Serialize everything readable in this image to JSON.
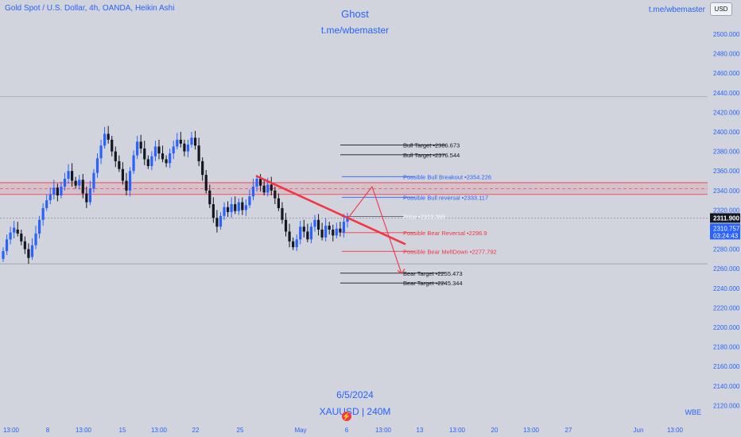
{
  "header": {
    "symbol_title": "Gold Spot / U.S. Dollar, 4h, OANDA, Heikin Ashi",
    "watermark": "t.me/wbemaster",
    "currency_button": "USD"
  },
  "overlay": {
    "title": "Ghost",
    "subtitle": "t.me/wbemaster",
    "date": "6/5/2024",
    "symbol_interval": "XAUUSD | 240M",
    "corner_tag": "WBE"
  },
  "colors": {
    "background": "#d1d4dc",
    "axis_text": "#2962ff",
    "bull_candle": "#2962ff",
    "bear_candle": "#131722",
    "trend_line": "#f23645",
    "price_label_bg": "#131722",
    "ha_label_bg": "#2962ff"
  },
  "icons": [
    "lightning-bolt-icon"
  ],
  "chart_data": {
    "type": "candlestick",
    "y_ticks": [
      "2500.000",
      "2480.000",
      "2460.000",
      "2440.000",
      "2420.000",
      "2400.000",
      "2380.000",
      "2360.000",
      "2340.000",
      "2320.000",
      "2300.000",
      "2280.000",
      "2260.000",
      "2240.000",
      "2220.000",
      "2200.000",
      "2180.000",
      "2160.000",
      "2140.000",
      "2120.000"
    ],
    "x_ticks": [
      "13:00",
      "8",
      "13:00",
      "15",
      "13:00",
      "22",
      "25",
      "May",
      "6",
      "13:00",
      "13",
      "13:00",
      "20",
      "13:00",
      "27",
      "Jun",
      "13:00"
    ],
    "ylim": [
      2115,
      2520
    ],
    "current_price": "2311.900",
    "ha_price": "2310.757",
    "countdown": "03:24:43",
    "levels": [
      {
        "label": "Bull Target",
        "value": "2386.673",
        "color": "#131722"
      },
      {
        "label": "Bull Target",
        "value": "2376.544",
        "color": "#131722"
      },
      {
        "label": "Possible Bull Breakout",
        "value": "2354.226",
        "color": "#2962ff"
      },
      {
        "label": "Possible Bull reversal",
        "value": "2333.117",
        "color": "#2962ff"
      },
      {
        "label": "Price",
        "value": "2313.395",
        "color": "#ffffff"
      },
      {
        "label": "Possible Bear Reversal",
        "value": "2296.9",
        "color": "#f23645"
      },
      {
        "label": "Possible Bear MeltDown",
        "value": "2277.792",
        "color": "#f23645"
      },
      {
        "label": "Bear Target",
        "value": "2255.473",
        "color": "#131722"
      },
      {
        "label": "Bear Target",
        "value": "2245.344",
        "color": "#131722"
      }
    ],
    "resistance_band": [
      2336,
      2348
    ],
    "support_line": 2265,
    "top_line": 2436,
    "trend_line": [
      [
        322,
        2355
      ],
      [
        510,
        2285
      ]
    ],
    "projection": [
      [
        438,
        2312
      ],
      [
        468,
        2344
      ],
      [
        505,
        2255
      ]
    ],
    "candles": [
      [
        2270,
        2278
      ],
      [
        2278,
        2290
      ],
      [
        2290,
        2297
      ],
      [
        2297,
        2302
      ],
      [
        2300,
        2296
      ],
      [
        2296,
        2288
      ],
      [
        2288,
        2280
      ],
      [
        2280,
        2271
      ],
      [
        2272,
        2284
      ],
      [
        2284,
        2296
      ],
      [
        2296,
        2310
      ],
      [
        2310,
        2322
      ],
      [
        2322,
        2330
      ],
      [
        2330,
        2336
      ],
      [
        2336,
        2343
      ],
      [
        2343,
        2335
      ],
      [
        2335,
        2344
      ],
      [
        2344,
        2352
      ],
      [
        2352,
        2360
      ],
      [
        2360,
        2350
      ],
      [
        2350,
        2345
      ],
      [
        2345,
        2351
      ],
      [
        2351,
        2337
      ],
      [
        2337,
        2328
      ],
      [
        2328,
        2342
      ],
      [
        2342,
        2358
      ],
      [
        2358,
        2373
      ],
      [
        2373,
        2386
      ],
      [
        2386,
        2398
      ],
      [
        2398,
        2392
      ],
      [
        2392,
        2380
      ],
      [
        2380,
        2370
      ],
      [
        2370,
        2362
      ],
      [
        2362,
        2350
      ],
      [
        2350,
        2340
      ],
      [
        2340,
        2360
      ],
      [
        2360,
        2376
      ],
      [
        2376,
        2390
      ],
      [
        2390,
        2383
      ],
      [
        2383,
        2372
      ],
      [
        2372,
        2365
      ],
      [
        2365,
        2375
      ],
      [
        2375,
        2385
      ],
      [
        2385,
        2378
      ],
      [
        2378,
        2372
      ],
      [
        2372,
        2368
      ],
      [
        2368,
        2378
      ],
      [
        2378,
        2385
      ],
      [
        2385,
        2392
      ],
      [
        2392,
        2388
      ],
      [
        2388,
        2380
      ],
      [
        2380,
        2387
      ],
      [
        2387,
        2394
      ],
      [
        2394,
        2386
      ],
      [
        2386,
        2370
      ],
      [
        2370,
        2356
      ],
      [
        2356,
        2340
      ],
      [
        2340,
        2326
      ],
      [
        2326,
        2312
      ],
      [
        2312,
        2303
      ],
      [
        2303,
        2314
      ],
      [
        2314,
        2323
      ],
      [
        2323,
        2318
      ],
      [
        2318,
        2326
      ],
      [
        2326,
        2319
      ],
      [
        2319,
        2328
      ],
      [
        2328,
        2320
      ],
      [
        2320,
        2325
      ],
      [
        2325,
        2334
      ],
      [
        2334,
        2344
      ],
      [
        2344,
        2352
      ],
      [
        2352,
        2345
      ],
      [
        2345,
        2338
      ],
      [
        2338,
        2346
      ],
      [
        2346,
        2340
      ],
      [
        2340,
        2332
      ],
      [
        2332,
        2322
      ],
      [
        2322,
        2310
      ],
      [
        2310,
        2298
      ],
      [
        2298,
        2288
      ],
      [
        2288,
        2282
      ],
      [
        2282,
        2290
      ],
      [
        2290,
        2303
      ],
      [
        2303,
        2298
      ],
      [
        2298,
        2290
      ],
      [
        2290,
        2303
      ],
      [
        2303,
        2310
      ],
      [
        2310,
        2300
      ],
      [
        2300,
        2292
      ],
      [
        2292,
        2304
      ],
      [
        2304,
        2300
      ],
      [
        2300,
        2294
      ],
      [
        2294,
        2301
      ],
      [
        2301,
        2297
      ],
      [
        2297,
        2308
      ],
      [
        2308,
        2313
      ]
    ]
  }
}
